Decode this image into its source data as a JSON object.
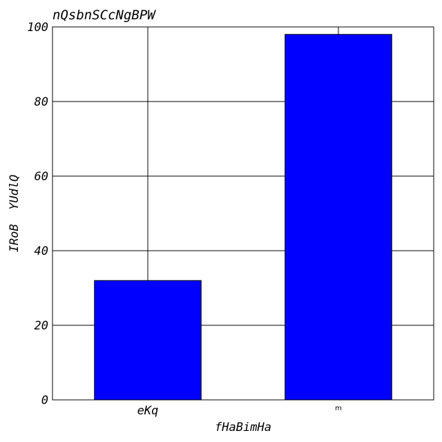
{
  "chart_data": {
    "type": "bar",
    "title": "nQsbnSCcNgBPW",
    "xlabel": "fHaBimHa",
    "ylabel": "IRoB  YUdlQ",
    "categories": [
      "eKq",
      "m"
    ],
    "values": [
      32,
      98
    ],
    "ylim": [
      0,
      100
    ],
    "yticks": [
      "0",
      "20",
      "40",
      "60",
      "80",
      "100"
    ],
    "grid": true,
    "legend": "none",
    "colors": {
      "bar": "#0000ff",
      "bar_edge": "#000000",
      "grid": "#000000",
      "axis": "#000000",
      "text": "#000000"
    }
  }
}
